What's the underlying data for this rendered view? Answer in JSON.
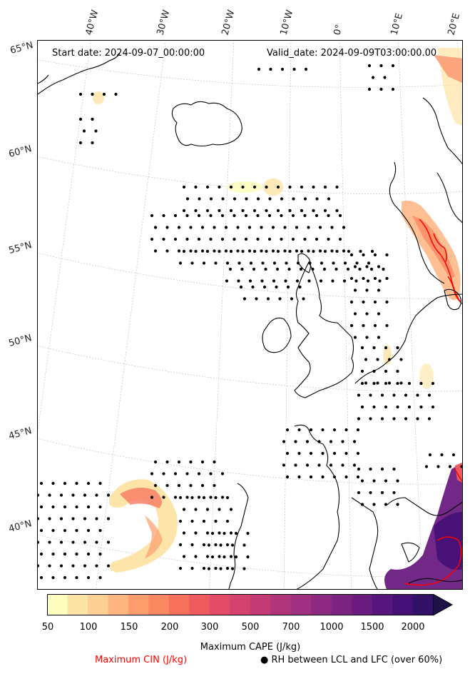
{
  "map": {
    "start_date_label": "Start date: 2024-09-07_00:00:00",
    "valid_date_label": "Valid_date: 2024-09-09T03:00:00.00",
    "longitude_labels": [
      "40°W",
      "30°W",
      "20°W",
      "10°W",
      "0°",
      "10°E",
      "20°E"
    ],
    "latitude_labels": [
      "65°N",
      "60°N",
      "55°N",
      "50°N",
      "45°N",
      "40°N"
    ]
  },
  "colorbar": {
    "title": "Maximum CAPE (J/kg)",
    "tick_labels": [
      "50",
      "100",
      "150",
      "200",
      "300",
      "500",
      "700",
      "1000",
      "1500",
      "2000"
    ],
    "colors": [
      "#fcfdbf",
      "#fde4a5",
      "#fecf92",
      "#feb57f",
      "#fd9d6c",
      "#fb8761",
      "#f7705c",
      "#ee5b5e",
      "#e24c66",
      "#d3436e",
      "#c23b75",
      "#b1357a",
      "#9f2f7f",
      "#8e2a81",
      "#7c2382",
      "#6a1c81",
      "#57157e",
      "#441078",
      "#311266",
      "#1e1146"
    ]
  },
  "legend": {
    "cin_label": "Maximum CIN (J/kg)",
    "cin_color": "#ff0000",
    "rh_marker": "●",
    "rh_label": "RH between LCL and LFC (over 60%)"
  }
}
